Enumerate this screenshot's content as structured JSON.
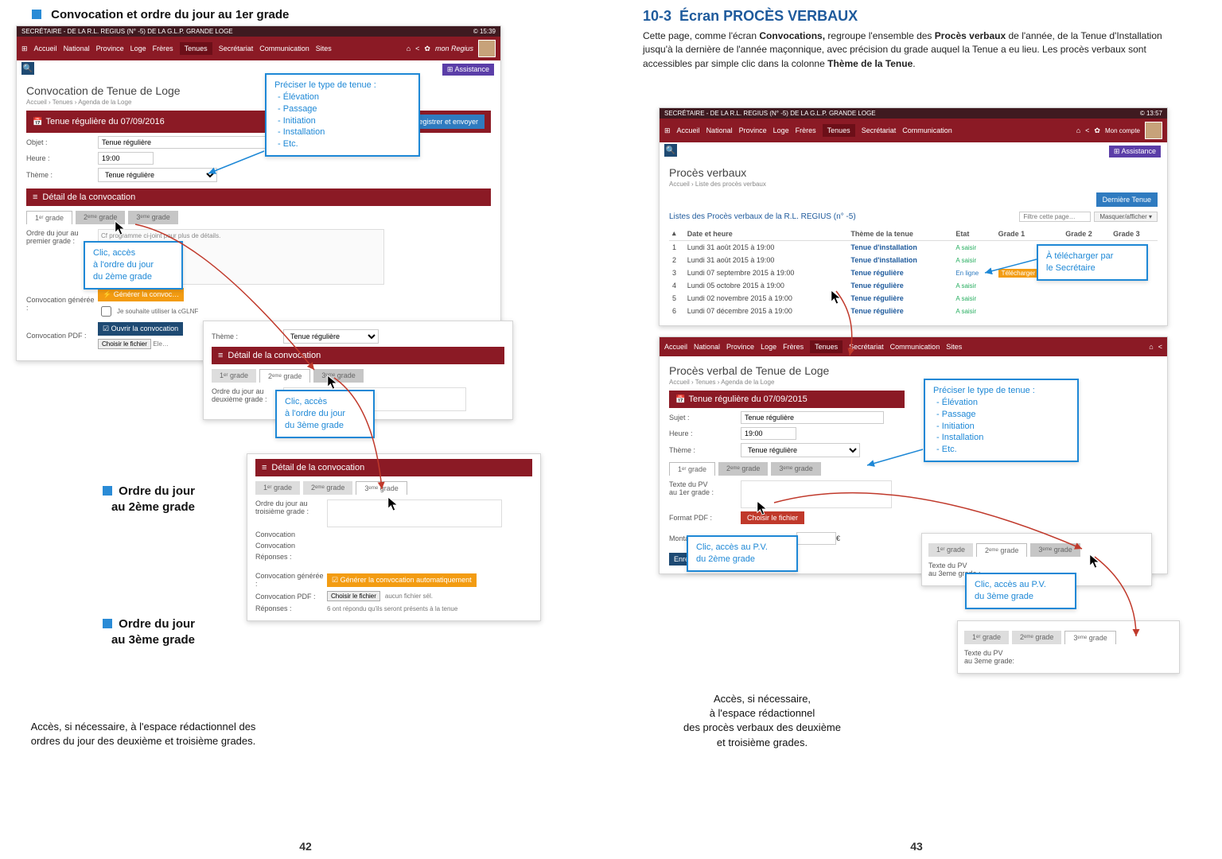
{
  "left": {
    "title": "Convocation et ordre du jour au 1er grade",
    "top_bar": "SECRÉTAIRE - DE LA R.L. REGIUS (N° -5) DE LA G.L.P. GRANDE LOGE",
    "time": "© 15:39",
    "nav": [
      "Accueil",
      "National",
      "Province",
      "Loge",
      "Frères",
      "Tenues",
      "Secrétariat",
      "Communication",
      "Sites"
    ],
    "brand": "mon Regius",
    "assist": "⊞ Assistance",
    "h3": "Convocation de Tenue de Loge",
    "bc": "Accueil  ›  Tenues  ›  Agenda de la Loge",
    "redbar1": "Tenue régulière du 07/09/2016",
    "save_send": "Enregistrer et envoyer",
    "obj_label": "Objet :",
    "obj_val": "Tenue régulière",
    "heure_label": "Heure :",
    "heure_val": "19:00",
    "theme_label": "Thème :",
    "theme_val": "Tenue régulière",
    "detail_header": "Détail de la convocation",
    "tabs": [
      "1ᵉʳ grade",
      "2ᵉᵐᵉ grade",
      "3ᵉᵐᵉ grade"
    ],
    "odj_label": "Ordre du jour au\npremier grade :",
    "odj_text": "Cf programme ci-joint pour plus de détails.",
    "conv_gen_label": "Convocation générée :",
    "conv_gen_btn": "⚡ Générer la convoc…",
    "chk_label": "Je souhaite utiliser la cGLNF",
    "conv_pdf_label": "Convocation PDF :",
    "open_btn": "☑ Ouvrir la convocation",
    "file_btn": "Choisir le fichier",
    "callout_type_title": "Préciser le type de tenue :",
    "callout_type_items": [
      "Élévation",
      "Passage",
      "Initiation",
      "Installation",
      "Etc."
    ],
    "callout_g2": "Clic, accès\nà l'ordre du jour\ndu 2ème grade",
    "callout_g3": "Clic, accès\nà l'ordre du jour\ndu 3ème grade",
    "cap2": "Ordre du jour\nau 2ème grade",
    "cap3": "Ordre du jour\nau 3ème grade",
    "footer_text": "Accès, si nécessaire, à l'espace rédactionnel des ordres du jour des deuxième et troisième grades.",
    "sub2": {
      "odj2_label": "Ordre du jour au\ndeuxième grade :",
      "theme_label": "Thème :",
      "sel": "Tenue régulière"
    },
    "sub3": {
      "odj3_label": "Ordre du jour au\ntroisième grade :",
      "conv_label": "Convocation",
      "resp_label": "Réponses :",
      "gen_label": "Convocation générée :",
      "gen_btn": "☑ Générer la convocation automatiquement",
      "pdf_label": "Convocation PDF :",
      "nofile": "aucun fichier sél.",
      "resp_text": "6 ont répondu qu'ils seront présents à la tenue"
    },
    "pagenum": "42"
  },
  "right": {
    "section_no": "10-3",
    "section_title": "Écran PROCÈS VERBAUX",
    "intro": "Cette page, comme l'écran <b>Convocations,</b> regroupe l'ensemble des <b>Procès verbaux</b> de l'année, de la Tenue d'Installation jusqu'à la dernière de l'année maçonnique, avec précision du grade auquel la Tenue a eu lieu. Les procès verbaux sont accessibles par simple clic dans la colonne <b>Thème de la Tenue</b>.",
    "top_bar": "SECRÉTAIRE - DE LA R.L. REGIUS (N° -5) DE LA G.L.P. GRANDE LOGE",
    "time": "© 13:57",
    "nav": [
      "Accueil",
      "National",
      "Province",
      "Loge",
      "Frères",
      "Tenues",
      "Secrétariat",
      "Communication"
    ],
    "brand": "Mon compte",
    "assist": "⊞ Assistance",
    "h3": "Procès verbaux",
    "bc": "Accueil  ›  Liste des procès verbaux",
    "last_btn": "Dernière Tenue",
    "list_title": "Listes des Procès verbaux de la R.L. REGIUS (n° -5)",
    "filter_ph": "Filtre cette page…",
    "mask_btn": "Masquer/afficher ▾",
    "cols": [
      "",
      "Date et heure",
      "Thème de la tenue",
      "Etat",
      "Grade 1",
      "Grade 2",
      "Grade 3"
    ],
    "rows": [
      {
        "n": "1",
        "date": "Lundi 31 août 2015 à 19:00",
        "theme": "Tenue d'installation",
        "etat": "A saisir"
      },
      {
        "n": "2",
        "date": "Lundi 31 août 2015 à 19:00",
        "theme": "Tenue d'installation",
        "etat": "A saisir"
      },
      {
        "n": "3",
        "date": "Lundi 07 septembre 2015 à 19:00",
        "theme": "Tenue régulière",
        "etat": "En ligne",
        "dl": "Télécharger"
      },
      {
        "n": "4",
        "date": "Lundi 05 octobre 2015 à 19:00",
        "theme": "Tenue régulière",
        "etat": "A saisir"
      },
      {
        "n": "5",
        "date": "Lundi 02 novembre 2015 à 19:00",
        "theme": "Tenue régulière",
        "etat": "A saisir"
      },
      {
        "n": "6",
        "date": "Lundi 07 décembre 2015 à 19:00",
        "theme": "Tenue régulière",
        "etat": "A saisir"
      }
    ],
    "callout_dl": "À télécharger par\nle Secrétaire",
    "callout_type_title": "Préciser le type de tenue :",
    "callout_type_items": [
      "Élévation",
      "Passage",
      "Initiation",
      "Installation",
      "Etc."
    ],
    "callout_g2": "Clic, accès au P.V.\ndu 2ème grade",
    "callout_g3": "Clic, accès au P.V.\ndu 3ème grade",
    "pv_h3": "Procès verbal de Tenue de Loge",
    "pv_bc": "Accueil  ›  Tenues  ›  Agenda de la Loge",
    "pv_redbar": "Tenue régulière du 07/09/2015",
    "sujet_label": "Sujet :",
    "sujet_val": "Tenue régulière",
    "heure_label": "Heure :",
    "heure_val": "19:00",
    "theme_label": "Thème :",
    "theme_val": "Tenue régulière",
    "tabs": [
      "1ᵉʳ grade",
      "2ᵉᵐᵉ grade",
      "3ᵉᵐᵉ grade"
    ],
    "pv_text_label": "Texte du PV\nau 1er grade :",
    "fmt_label": "Format PDF :",
    "file_btn": "Choisir le fichier",
    "tronc_label": "Montant du tronc de la veuve :",
    "euro": "€",
    "save_btn": "Enregistrer les modifications",
    "sub2_label": "Texte du PV\nau 3eme grade :",
    "sub3_label": "Texte du PV\nau 3eme grade:",
    "footer_text": "Accès, si nécessaire,\nà l'espace rédactionnel\ndes procès verbaux des deuxième\net troisième grades.",
    "pagenum": "43"
  },
  "colors": {
    "brand_red": "#8b1a25",
    "dark_red": "#3f1a20",
    "blue": "#2f7bc0",
    "callout": "#1e88d6",
    "orange": "#f39c12"
  }
}
